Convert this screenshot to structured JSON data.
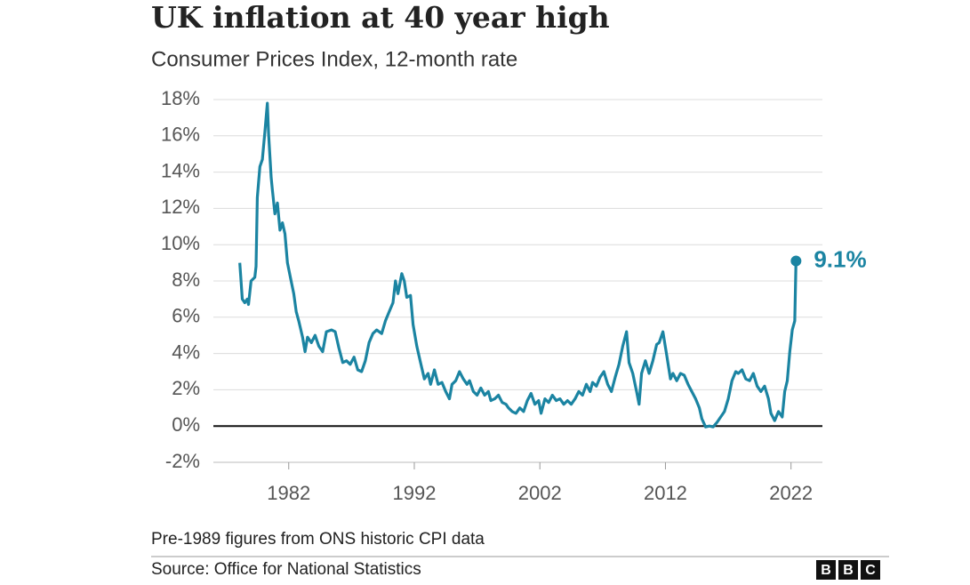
{
  "chart_data": {
    "type": "line",
    "title": "UK inflation at 40 year high",
    "subtitle": "Consumer Prices Index, 12-month rate",
    "note": "Pre-1989 figures from ONS historic CPI data",
    "source": "Source: Office for National Statistics",
    "logo": [
      "B",
      "B",
      "C"
    ],
    "annotation": "9.1%",
    "xlim": [
      1976,
      2024.5
    ],
    "xticks": [
      1982,
      1992,
      2002,
      2012,
      2022
    ],
    "ylim": [
      -2,
      18
    ],
    "yticks": [
      {
        "value": -2,
        "label": "-2%"
      },
      {
        "value": 0,
        "label": "0%"
      },
      {
        "value": 2,
        "label": "2%"
      },
      {
        "value": 4,
        "label": "4%"
      },
      {
        "value": 6,
        "label": "6%"
      },
      {
        "value": 8,
        "label": "8%"
      },
      {
        "value": 10,
        "label": "10%"
      },
      {
        "value": 12,
        "label": "12%"
      },
      {
        "value": 14,
        "label": "14%"
      },
      {
        "value": 16,
        "label": "16%"
      },
      {
        "value": 18,
        "label": "18%"
      }
    ],
    "grid": true,
    "series": [
      {
        "name": "CPI",
        "color": "#1b84a2",
        "x": [
          1978.1,
          1978.3,
          1978.5,
          1978.7,
          1978.8,
          1979.0,
          1979.3,
          1979.4,
          1979.5,
          1979.7,
          1979.9,
          1980.1,
          1980.3,
          1980.4,
          1980.6,
          1980.7,
          1980.9,
          1981.1,
          1981.3,
          1981.5,
          1981.7,
          1981.9,
          1982.1,
          1982.4,
          1982.6,
          1982.8,
          1983.1,
          1983.3,
          1983.5,
          1983.8,
          1984.1,
          1984.4,
          1984.7,
          1985.0,
          1985.4,
          1985.7,
          1986.0,
          1986.3,
          1986.6,
          1986.9,
          1987.2,
          1987.5,
          1987.8,
          1988.1,
          1988.4,
          1988.7,
          1989.0,
          1989.4,
          1989.7,
          1990.0,
          1990.3,
          1990.5,
          1990.7,
          1991.0,
          1991.2,
          1991.4,
          1991.7,
          1991.9,
          1992.2,
          1992.5,
          1992.8,
          1993.1,
          1993.3,
          1993.6,
          1993.9,
          1994.2,
          1994.5,
          1994.8,
          1995.0,
          1995.3,
          1995.6,
          1995.9,
          1996.2,
          1996.4,
          1996.7,
          1997.0,
          1997.3,
          1997.6,
          1997.9,
          1998.1,
          1998.4,
          1998.7,
          1999.0,
          1999.3,
          1999.5,
          1999.8,
          2000.1,
          2000.4,
          2000.7,
          2001.0,
          2001.3,
          2001.6,
          2001.9,
          2002.1,
          2002.4,
          2002.7,
          2003.0,
          2003.3,
          2003.6,
          2003.9,
          2004.2,
          2004.5,
          2004.8,
          2005.1,
          2005.4,
          2005.7,
          2006.0,
          2006.2,
          2006.5,
          2006.8,
          2007.1,
          2007.4,
          2007.7,
          2008.0,
          2008.3,
          2008.6,
          2008.9,
          2009.1,
          2009.4,
          2009.7,
          2009.9,
          2010.1,
          2010.4,
          2010.7,
          2011.0,
          2011.3,
          2011.5,
          2011.8,
          2012.1,
          2012.4,
          2012.6,
          2012.9,
          2013.2,
          2013.5,
          2013.8,
          2014.1,
          2014.4,
          2014.7,
          2014.9,
          2015.2,
          2015.5,
          2015.8,
          2016.1,
          2016.4,
          2016.7,
          2017.0,
          2017.3,
          2017.6,
          2017.8,
          2018.1,
          2018.4,
          2018.7,
          2019.0,
          2019.3,
          2019.6,
          2019.9,
          2020.2,
          2020.4,
          2020.7,
          2021.0,
          2021.3,
          2021.5,
          2021.7,
          2021.9,
          2022.1,
          2022.3,
          2022.4
        ],
        "values": [
          9.0,
          7.0,
          6.8,
          7.0,
          6.7,
          8.0,
          8.2,
          8.8,
          12.6,
          14.3,
          14.7,
          16.2,
          17.8,
          16.1,
          13.7,
          13.0,
          11.7,
          12.3,
          10.8,
          11.2,
          10.6,
          9.0,
          8.3,
          7.3,
          6.3,
          5.8,
          4.9,
          4.1,
          4.9,
          4.6,
          5.0,
          4.4,
          4.1,
          5.2,
          5.3,
          5.2,
          4.3,
          3.5,
          3.6,
          3.4,
          3.8,
          3.1,
          3.0,
          3.6,
          4.6,
          5.1,
          5.3,
          5.1,
          5.8,
          6.3,
          6.8,
          8.0,
          7.3,
          8.4,
          8.0,
          7.1,
          7.2,
          5.6,
          4.4,
          3.5,
          2.6,
          2.9,
          2.3,
          3.1,
          2.3,
          2.4,
          1.9,
          1.5,
          2.3,
          2.5,
          3.0,
          2.6,
          2.3,
          2.5,
          1.9,
          1.7,
          2.1,
          1.7,
          1.9,
          1.4,
          1.5,
          1.7,
          1.3,
          1.2,
          1.0,
          0.8,
          0.7,
          1.0,
          0.8,
          1.4,
          1.8,
          1.2,
          1.4,
          0.7,
          1.5,
          1.3,
          1.7,
          1.4,
          1.5,
          1.2,
          1.4,
          1.2,
          1.5,
          1.9,
          1.7,
          2.3,
          1.9,
          2.4,
          2.2,
          2.7,
          3.0,
          2.3,
          1.9,
          2.7,
          3.4,
          4.4,
          5.2,
          3.5,
          2.9,
          1.9,
          1.2,
          2.9,
          3.6,
          2.9,
          3.6,
          4.5,
          4.6,
          5.2,
          3.9,
          2.6,
          2.9,
          2.5,
          2.9,
          2.8,
          2.3,
          1.9,
          1.5,
          1.0,
          0.4,
          -0.05,
          0.0,
          -0.05,
          0.2,
          0.5,
          0.8,
          1.5,
          2.5,
          3.0,
          2.9,
          3.1,
          2.6,
          2.5,
          2.9,
          2.2,
          1.9,
          2.2,
          1.5,
          0.7,
          0.3,
          0.8,
          0.5,
          1.9,
          2.5,
          4.1,
          5.3,
          5.8,
          9.1
        ]
      }
    ]
  }
}
